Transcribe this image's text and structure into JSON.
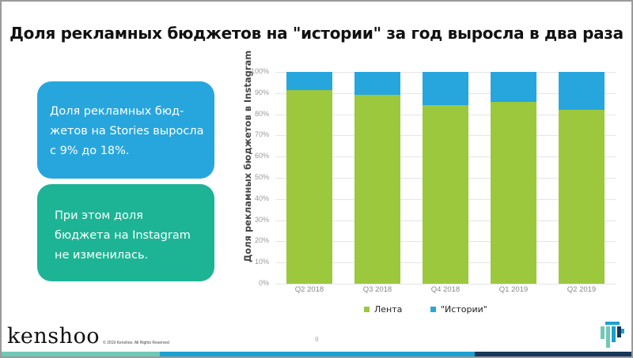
{
  "slide": {
    "title": "Доля рекламных бюджетов на \"истории\" за год выросла в два раза",
    "callouts": [
      {
        "lines": [
          "Доля рекламных бюд-",
          "жетов на Stories выросла",
          "с 9% до 18%."
        ],
        "color": "#27a6dd"
      },
      {
        "lines": [
          "При этом доля",
          "бюджета на Instagram",
          "не изменилась."
        ],
        "color": "#1db496"
      }
    ],
    "footer": {
      "logo": "kenshoo",
      "copyright": "© 2019 Kenshoo. All Rights Reserved",
      "page_number": "9",
      "brand_mark_icon": "kenshoo-mark-icon"
    }
  },
  "chart_data": {
    "type": "bar",
    "stacked": true,
    "percent": true,
    "title": "Доля рекламных бюджетов на \"истории\" за год выросла в два раза",
    "xlabel": "",
    "ylabel": "Доля рекламных бюджетов в Instagram",
    "categories": [
      "Q2 2018",
      "Q3 2018",
      "Q4 2018",
      "Q1 2019",
      "Q2 2019"
    ],
    "series": [
      {
        "name": "Лента",
        "color": "#9bc83d",
        "values": [
          91.5,
          89,
          84.5,
          86,
          82
        ]
      },
      {
        "name": "\"Истории\"",
        "color": "#27a6dd",
        "values": [
          8.5,
          11,
          15.5,
          14,
          18
        ]
      }
    ],
    "yticks": [
      "0%",
      "10%",
      "20%",
      "30%",
      "40%",
      "50%",
      "60%",
      "70%",
      "80%",
      "90%",
      "100%"
    ],
    "ylim": [
      0,
      100
    ],
    "grid": true,
    "legend_position": "bottom"
  }
}
